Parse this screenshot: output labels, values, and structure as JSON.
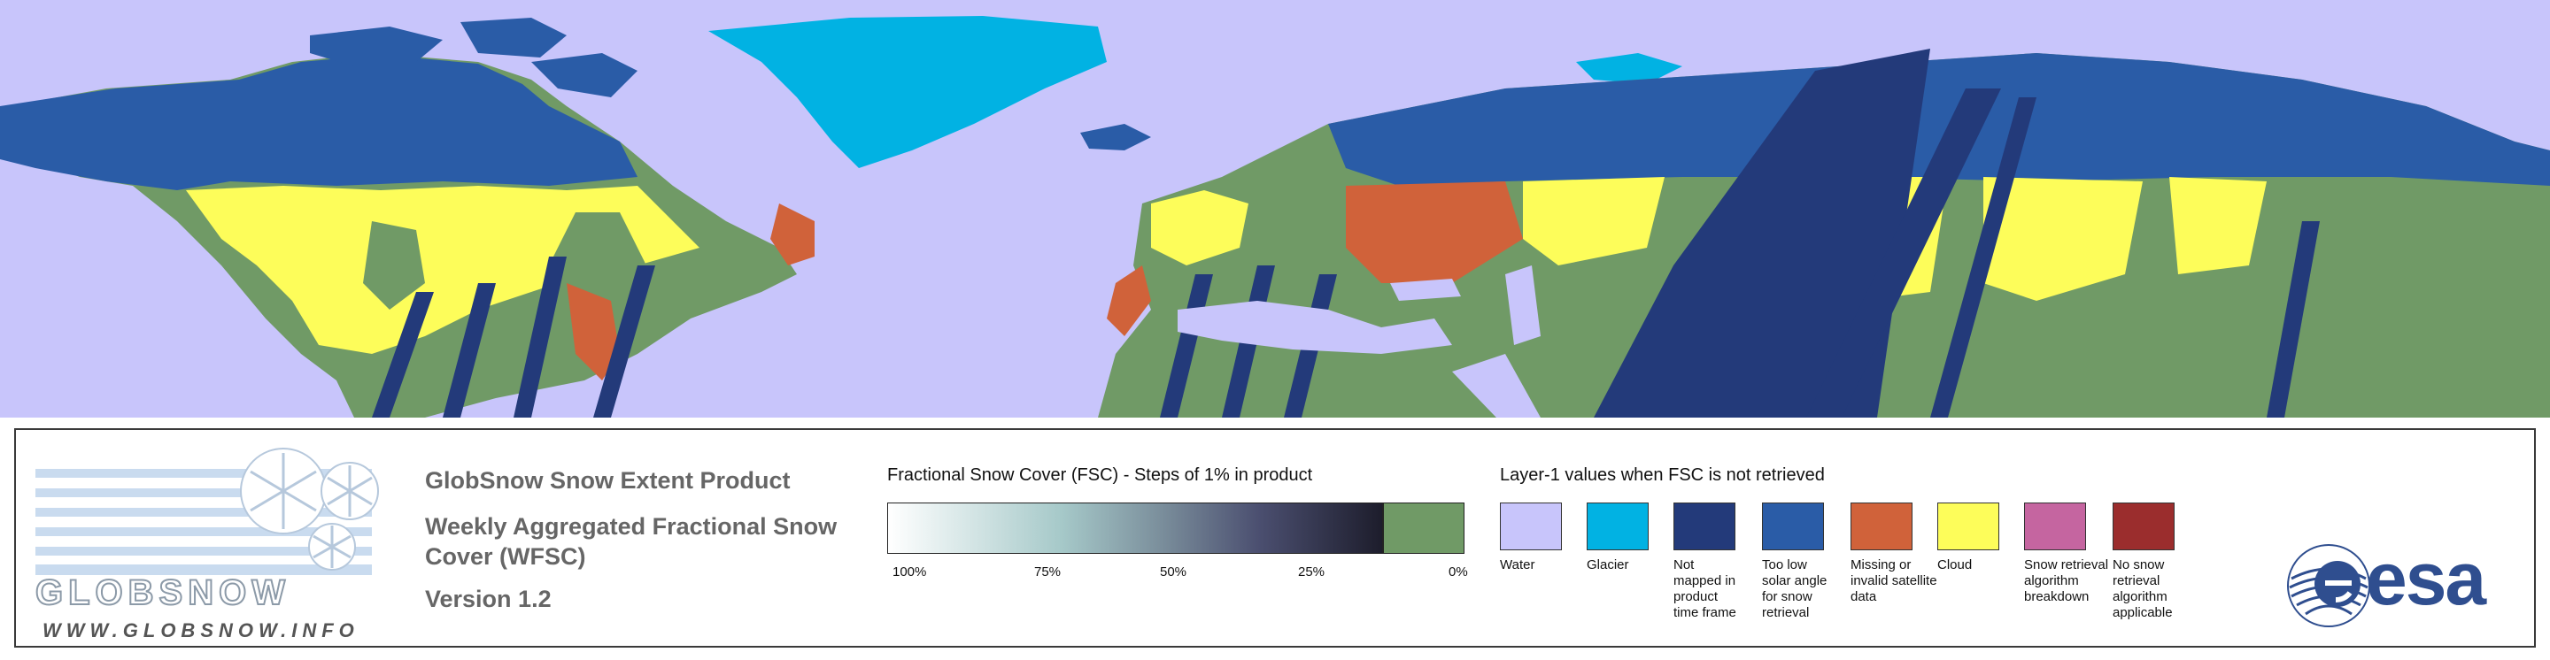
{
  "map": {
    "ocean_color": "#c8c5fb",
    "legend_colors": {
      "water": "#c8c5fb",
      "glacier": "#01b2e3",
      "not_mapped": "#233a7a",
      "low_sun": "#2a5ca7",
      "invalid": "#d0623a",
      "cloud": "#fdfd5a",
      "breakdown": "#c565a0",
      "not_applicable": "#9b2d2d",
      "snow_free": "#709a66"
    }
  },
  "logo": {
    "brand": "GLOBSNOW",
    "url": "WWW.GLOBSNOW.INFO"
  },
  "titles": {
    "product": "GlobSnow Snow Extent Product",
    "subtitle_line1": "Weekly Aggregated Fractional Snow",
    "subtitle_line2": "Cover (WFSC)",
    "version": "Version 1.2"
  },
  "fsc_scale": {
    "title": "Fractional Snow Cover (FSC) - Steps of 1% in product",
    "ticks": [
      "100%",
      "75%",
      "50%",
      "25%",
      "0%"
    ]
  },
  "layer1": {
    "title": "Layer-1 values when FSC is not retrieved",
    "items": [
      {
        "key": "water",
        "color": "#c8c5fb",
        "label": [
          "Water"
        ]
      },
      {
        "key": "glacier",
        "color": "#01b2e3",
        "label": [
          "Glacier"
        ]
      },
      {
        "key": "not_mapped",
        "color": "#233a7a",
        "label": [
          "Not",
          "mapped in",
          "product",
          "time frame"
        ]
      },
      {
        "key": "low_sun",
        "color": "#2a5ca7",
        "label": [
          "Too low",
          "solar angle",
          "for snow",
          "retrieval"
        ]
      },
      {
        "key": "invalid",
        "color": "#d0623a",
        "label": [
          "Missing or",
          "invalid satellite",
          "data"
        ]
      },
      {
        "key": "cloud",
        "color": "#fdfd5a",
        "label": [
          "Cloud"
        ]
      },
      {
        "key": "breakdown",
        "color": "#c565a0",
        "label": [
          "Snow retrieval",
          "algorithm",
          "breakdown"
        ]
      },
      {
        "key": "not_applicable",
        "color": "#9b2d2d",
        "label": [
          "No snow",
          "retrieval",
          "algorithm",
          "applicable"
        ]
      }
    ]
  },
  "agency": {
    "name": "esa"
  }
}
